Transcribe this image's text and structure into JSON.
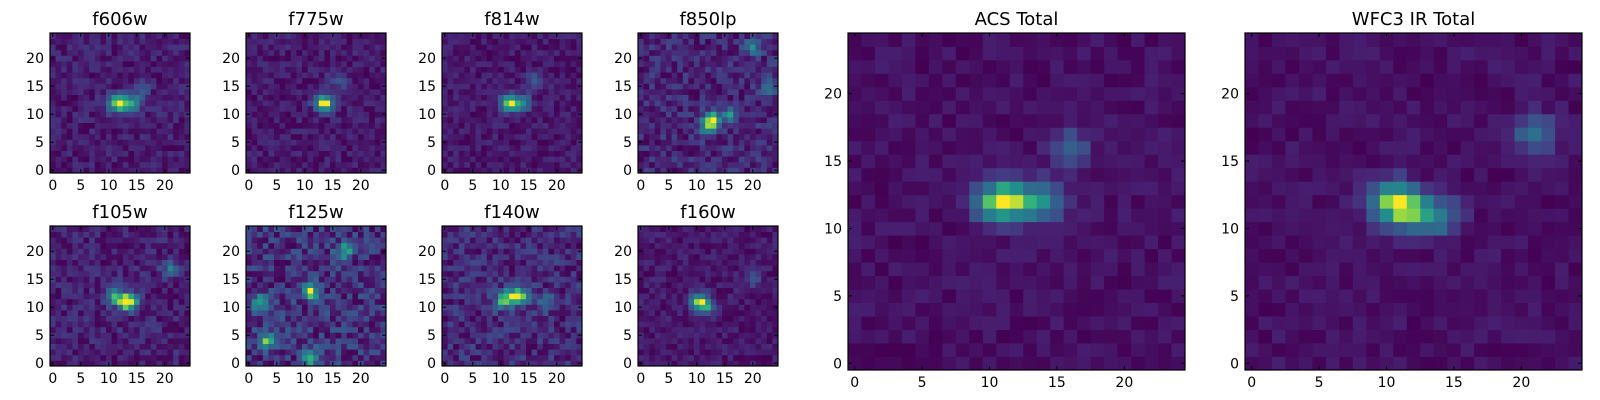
{
  "figure": {
    "description_free": true
  },
  "chart_data": [
    {
      "type": "heatmap",
      "title": "f606w",
      "xticks": [
        "0",
        "5",
        "10",
        "15",
        "20"
      ],
      "yticks": [
        "0",
        "5",
        "10",
        "15",
        "20"
      ],
      "xlim": [
        0,
        25
      ],
      "ylim": [
        0,
        25
      ],
      "grid": false,
      "peaks": [
        [
          11,
          12,
          1.0
        ],
        [
          12.5,
          12,
          0.9
        ],
        [
          14.5,
          12,
          0.95
        ],
        [
          16,
          15,
          0.5
        ]
      ],
      "noise": 0.35,
      "seed": 11
    },
    {
      "type": "heatmap",
      "title": "f775w",
      "xticks": [
        "0",
        "5",
        "10",
        "15",
        "20"
      ],
      "yticks": [
        "0",
        "5",
        "10",
        "15",
        "20"
      ],
      "xlim": [
        0,
        25
      ],
      "ylim": [
        0,
        25
      ],
      "grid": false,
      "peaks": [
        [
          13,
          12,
          1.0
        ],
        [
          14,
          12,
          0.95
        ],
        [
          16,
          16,
          0.5
        ]
      ],
      "noise": 0.35,
      "seed": 23
    },
    {
      "type": "heatmap",
      "title": "f814w",
      "xticks": [
        "0",
        "5",
        "10",
        "15",
        "20"
      ],
      "yticks": [
        "0",
        "5",
        "10",
        "15",
        "20"
      ],
      "xlim": [
        0,
        25
      ],
      "ylim": [
        0,
        25
      ],
      "grid": false,
      "peaks": [
        [
          11,
          12,
          0.85
        ],
        [
          12,
          12,
          1.0
        ],
        [
          14,
          12,
          0.95
        ],
        [
          16,
          16,
          0.5
        ]
      ],
      "noise": 0.35,
      "seed": 37
    },
    {
      "type": "heatmap",
      "title": "f850lp",
      "xticks": [
        "0",
        "5",
        "10",
        "15",
        "20"
      ],
      "yticks": [
        "0",
        "5",
        "10",
        "15",
        "20"
      ],
      "xlim": [
        0,
        25
      ],
      "ylim": [
        0,
        25
      ],
      "grid": false,
      "peaks": [
        [
          13,
          9,
          1.0
        ],
        [
          12,
          8,
          0.85
        ],
        [
          16,
          10,
          0.6
        ],
        [
          20,
          22,
          0.6
        ],
        [
          23,
          15,
          0.55
        ]
      ],
      "noise": 0.4,
      "seed": 41
    },
    {
      "type": "heatmap",
      "title": "f105w",
      "xticks": [
        "0",
        "5",
        "10",
        "15",
        "20"
      ],
      "yticks": [
        "0",
        "5",
        "10",
        "15",
        "20"
      ],
      "xlim": [
        0,
        25
      ],
      "ylim": [
        0,
        25
      ],
      "grid": false,
      "peaks": [
        [
          11,
          12,
          1.0
        ],
        [
          13,
          11,
          0.95
        ],
        [
          14,
          11,
          0.9
        ],
        [
          21,
          17,
          0.6
        ]
      ],
      "noise": 0.38,
      "seed": 53
    },
    {
      "type": "heatmap",
      "title": "f125w",
      "xticks": [
        "0",
        "5",
        "10",
        "15",
        "20"
      ],
      "yticks": [
        "0",
        "5",
        "10",
        "15",
        "20"
      ],
      "xlim": [
        0,
        25
      ],
      "ylim": [
        0,
        25
      ],
      "grid": false,
      "peaks": [
        [
          11,
          13,
          0.9
        ],
        [
          11,
          1,
          0.9
        ],
        [
          3,
          4,
          0.75
        ],
        [
          2,
          11,
          0.7
        ],
        [
          17,
          20,
          0.65
        ]
      ],
      "noise": 0.45,
      "seed": 67
    },
    {
      "type": "heatmap",
      "title": "f140w",
      "xticks": [
        "0",
        "5",
        "10",
        "15",
        "20"
      ],
      "yticks": [
        "0",
        "5",
        "10",
        "15",
        "20"
      ],
      "xlim": [
        0,
        25
      ],
      "ylim": [
        0,
        25
      ],
      "grid": false,
      "peaks": [
        [
          12,
          12,
          1.0
        ],
        [
          14,
          12,
          0.95
        ],
        [
          10,
          11,
          0.8
        ],
        [
          18,
          11,
          0.6
        ]
      ],
      "noise": 0.45,
      "seed": 71
    },
    {
      "type": "heatmap",
      "title": "f160w",
      "xticks": [
        "0",
        "5",
        "10",
        "15",
        "20"
      ],
      "yticks": [
        "0",
        "5",
        "10",
        "15",
        "20"
      ],
      "xlim": [
        0,
        25
      ],
      "ylim": [
        0,
        25
      ],
      "grid": false,
      "peaks": [
        [
          10,
          11,
          1.0
        ],
        [
          11,
          11,
          0.95
        ],
        [
          12,
          10,
          0.9
        ],
        [
          20,
          15,
          0.5
        ]
      ],
      "noise": 0.38,
      "seed": 83
    },
    {
      "type": "heatmap",
      "title": "ACS Total",
      "xticks": [
        "0",
        "5",
        "10",
        "15",
        "20"
      ],
      "yticks": [
        "0",
        "5",
        "10",
        "15",
        "20"
      ],
      "xlim": [
        0,
        25
      ],
      "ylim": [
        0,
        25
      ],
      "grid": false,
      "peaks": [
        [
          10,
          12,
          0.75
        ],
        [
          11,
          12,
          0.85
        ],
        [
          12,
          12,
          0.8
        ],
        [
          14,
          12,
          1.0
        ],
        [
          16,
          16,
          0.6
        ]
      ],
      "noise": 0.22,
      "seed": 97
    },
    {
      "type": "heatmap",
      "title": "WFC3 IR Total",
      "xticks": [
        "0",
        "5",
        "10",
        "15",
        "20"
      ],
      "yticks": [
        "0",
        "5",
        "10",
        "15",
        "20"
      ],
      "xlim": [
        0,
        25
      ],
      "ylim": [
        0,
        25
      ],
      "grid": false,
      "peaks": [
        [
          10,
          12,
          0.95
        ],
        [
          11,
          12,
          1.0
        ],
        [
          12,
          11,
          0.9
        ],
        [
          14,
          11,
          0.85
        ],
        [
          21,
          17,
          0.85
        ]
      ],
      "noise": 0.22,
      "seed": 101
    }
  ]
}
